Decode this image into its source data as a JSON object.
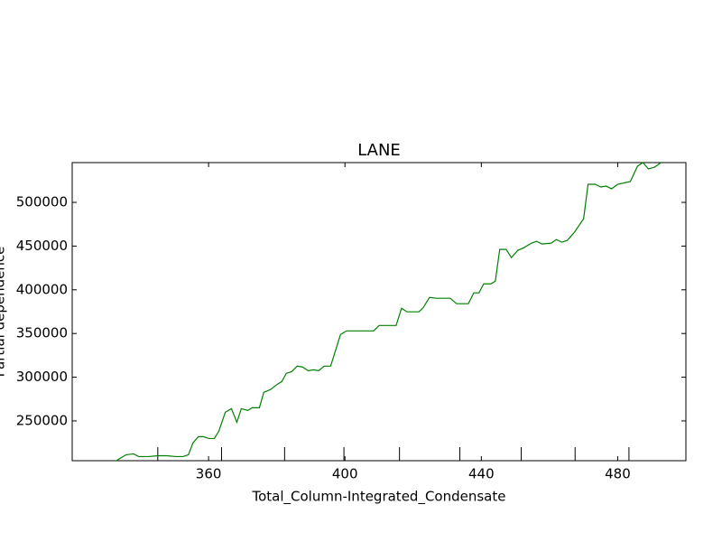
{
  "chart_data": {
    "type": "line",
    "title": "LANE",
    "x_label": "Total_Column-Integrated_Condensate",
    "y_label": "Partial dependence",
    "x": [
      332.7,
      335.8,
      338.0,
      339.5,
      342.4,
      345.1,
      347.7,
      350.4,
      352.5,
      354.1,
      355.4,
      357.0,
      358.5,
      360.1,
      361.7,
      363.0,
      364.9,
      366.7,
      368.3,
      369.6,
      371.5,
      372.8,
      374.9,
      376.2,
      378.1,
      380.2,
      381.5,
      382.8,
      384.4,
      386.0,
      387.6,
      389.2,
      390.8,
      392.3,
      393.9,
      395.8,
      398.7,
      400.5,
      403.2,
      408.4,
      410.0,
      415.0,
      416.6,
      418.2,
      421.7,
      423.0,
      424.8,
      426.9,
      430.9,
      432.7,
      436.2,
      437.8,
      439.3,
      440.7,
      442.8,
      444.1,
      445.4,
      447.3,
      448.8,
      450.7,
      452.5,
      454.7,
      456.2,
      457.8,
      460.5,
      462.0,
      463.6,
      465.2,
      467.3,
      470.0,
      471.3,
      473.4,
      475.0,
      476.6,
      478.2,
      480.0,
      483.7,
      485.8,
      487.4,
      489.0,
      490.8,
      492.7
    ],
    "series": [
      {
        "name": "LANE",
        "color": "#008000",
        "values": [
          204000,
          211300,
          212300,
          209200,
          209200,
          210200,
          210200,
          209200,
          209200,
          211300,
          224700,
          232000,
          232000,
          229900,
          229900,
          238200,
          259900,
          264000,
          248500,
          264000,
          262000,
          265100,
          265100,
          282700,
          285800,
          292000,
          295100,
          304400,
          306500,
          312700,
          311600,
          307500,
          308500,
          307500,
          312700,
          312700,
          348900,
          353000,
          353000,
          353000,
          359200,
          359200,
          378900,
          374800,
          374800,
          379900,
          391300,
          390300,
          390300,
          384100,
          384100,
          396500,
          396500,
          406800,
          406800,
          409900,
          446200,
          446200,
          436800,
          445100,
          448200,
          453400,
          455500,
          452400,
          453400,
          457500,
          454400,
          456500,
          465800,
          481300,
          520700,
          520700,
          517600,
          518600,
          515500,
          520700,
          523800,
          541400,
          545500,
          538300,
          540300,
          545500
        ]
      }
    ],
    "deciles": [
      345.1,
      363.8,
      382.3,
      399.7,
      416.0,
      433.7,
      451.7,
      467.5,
      483.3
    ],
    "xlim": [
      320,
      500
    ],
    "ylim": [
      204500,
      545500
    ],
    "xticks": [
      360,
      400,
      440,
      480
    ],
    "yticks": [
      250000,
      300000,
      350000,
      400000,
      450000,
      500000
    ]
  }
}
